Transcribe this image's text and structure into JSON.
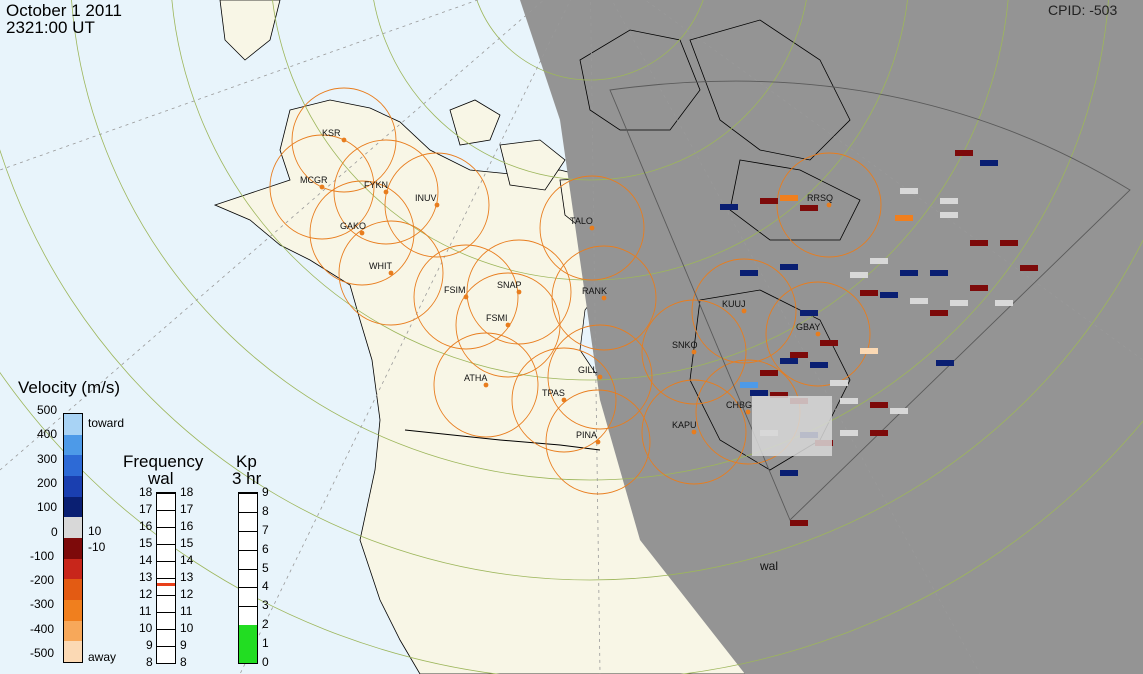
{
  "header": {
    "date": "October  1 2011",
    "time": "2321:00 UT",
    "cpid": "CPID:  -503"
  },
  "colors": {
    "ocean": "#e8f4fb",
    "land": "#f8f6e6",
    "night": "#949494",
    "coverage_circle": "#e87d1e",
    "station_dot": "#e87d1e",
    "grid": "#9db65b",
    "fov_outline": "#6b6b6b",
    "kp_fill": "#22dd22",
    "frequency_marker": "#e8401a"
  },
  "radar": {
    "name": "wal",
    "stations": [
      "KSR",
      "MCGR",
      "FYKN",
      "GAKO",
      "INUV",
      "WHIT",
      "FSIM",
      "SNAP",
      "FSMI",
      "RANK",
      "ATHA",
      "GILL",
      "TPAS",
      "PINA",
      "KAPU",
      "CHBG",
      "SNKO",
      "KUUJ",
      "GBAY",
      "RRSQ",
      "TALO"
    ]
  },
  "velocity_scale": {
    "title": "Velocity (m/s)",
    "ticks": [
      "500",
      "400",
      "300",
      "200",
      "100",
      "0",
      "-100",
      "-200",
      "-300",
      "-400",
      "-500"
    ],
    "toward_label": "toward",
    "away_label": "away",
    "ground_scatter_labels": [
      "10",
      "-10"
    ],
    "colors": [
      "#fbd9b4",
      "#f7a85a",
      "#f07f1e",
      "#e35b13",
      "#c8261b",
      "#7d0a0a",
      "#d8d8d8",
      "#0a1f72",
      "#1a3fb0",
      "#2d6ad6",
      "#4d9ae8",
      "#a8d3f5"
    ]
  },
  "frequency_scale": {
    "title": "Frequency",
    "subtitle": "wal",
    "ticks_left": [
      "18",
      "17",
      "16",
      "15",
      "14",
      "13",
      "12",
      "11",
      "10",
      "9",
      "8"
    ],
    "ticks_right": [
      "18",
      "17",
      "16",
      "15",
      "14",
      "13",
      "12",
      "11",
      "10",
      "9",
      "8"
    ],
    "value_mhz": 12.7
  },
  "kp_scale": {
    "title": "Kp",
    "subtitle": "3 hr",
    "ticks": [
      "9",
      "8",
      "7",
      "6",
      "5",
      "4",
      "3",
      "2",
      "1",
      "0"
    ],
    "value": 2
  }
}
